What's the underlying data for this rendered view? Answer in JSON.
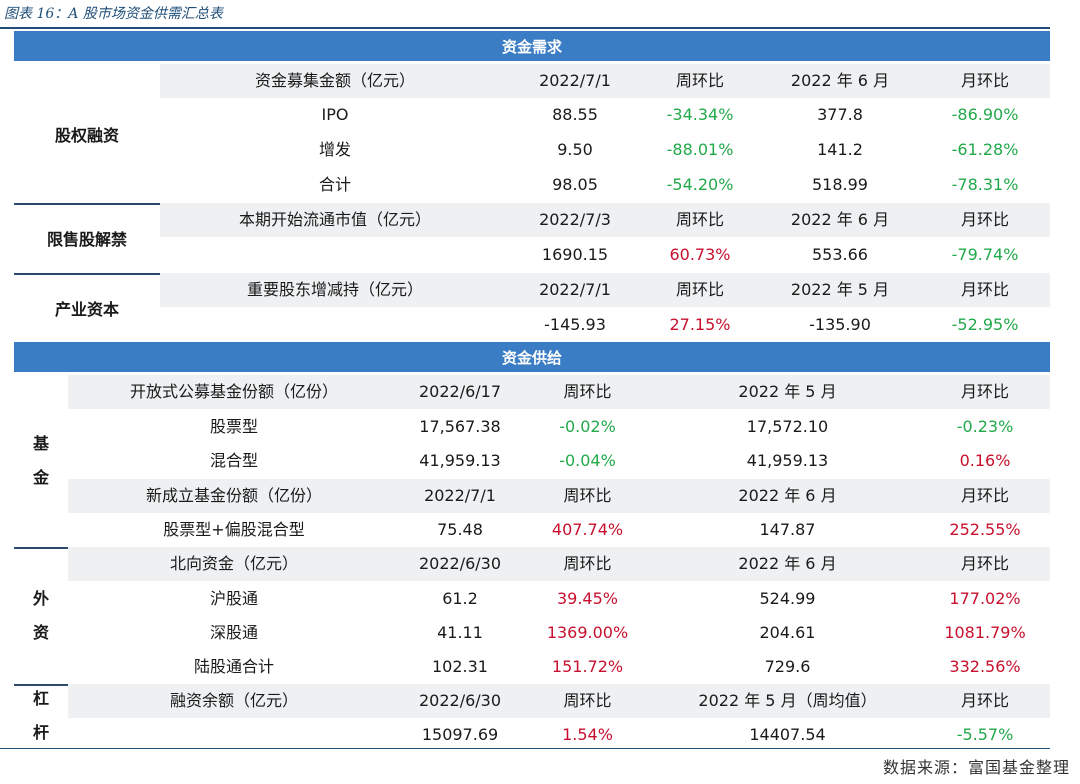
{
  "caption": "图表 16：A 股市场资金供需汇总表",
  "source": "数据来源：富国基金整理",
  "colors": {
    "up": "#c8102e",
    "down": "#22a94a",
    "band": "#3a7dc4",
    "navy": "#1f4e79"
  },
  "demand": {
    "title": "资金需求",
    "equity": {
      "group": "股权融资",
      "header": [
        "资金募集金额（亿元）",
        "2022/7/1",
        "周环比",
        "2022 年 6 月",
        "月环比"
      ],
      "rows": [
        [
          "IPO",
          "88.55",
          "-34.34%",
          "377.8",
          "-86.90%"
        ],
        [
          "增发",
          "9.50",
          "-88.01%",
          "141.2",
          "-61.28%"
        ],
        [
          "合计",
          "98.05",
          "-54.20%",
          "518.99",
          "-78.31%"
        ]
      ]
    },
    "lockup": {
      "group": "限售股解禁",
      "header": [
        "本期开始流通市值（亿元）",
        "2022/7/3",
        "周环比",
        "2022 年 6 月",
        "月环比"
      ],
      "rows": [
        [
          "",
          "1690.15",
          "60.73%",
          "553.66",
          "-79.74%"
        ]
      ]
    },
    "industry": {
      "group": "产业资本",
      "header": [
        "重要股东增减持（亿元）",
        "2022/7/1",
        "周环比",
        "2022 年 5 月",
        "月环比"
      ],
      "rows": [
        [
          "",
          "-145.93",
          "27.15%",
          "-135.90",
          "-52.95%"
        ]
      ]
    }
  },
  "supply": {
    "title": "资金供给",
    "fund": {
      "group": [
        "基",
        "金"
      ],
      "open_header": [
        "开放式公募基金份额（亿份）",
        "2022/6/17",
        "周环比",
        "2022 年 5 月",
        "月环比"
      ],
      "open_rows": [
        [
          "股票型",
          "17,567.38",
          "-0.02%",
          "17,572.10",
          "-0.23%"
        ],
        [
          "混合型",
          "41,959.13",
          "-0.04%",
          "41,959.13",
          "0.16%"
        ]
      ],
      "new_header": [
        "新成立基金份额（亿份）",
        "2022/7/1",
        "周环比",
        "2022 年 6 月",
        "月环比"
      ],
      "new_rows": [
        [
          "股票型+偏股混合型",
          "75.48",
          "407.74%",
          "147.87",
          "252.55%"
        ]
      ]
    },
    "foreign": {
      "group": [
        "外",
        "资"
      ],
      "header": [
        "北向资金（亿元）",
        "2022/6/30",
        "周环比",
        "2022 年 6 月",
        "月环比"
      ],
      "rows": [
        [
          "沪股通",
          "61.2",
          "39.45%",
          "524.99",
          "177.02%"
        ],
        [
          "深股通",
          "41.11",
          "1369.00%",
          "204.61",
          "1081.79%"
        ],
        [
          "陆股通合计",
          "102.31",
          "151.72%",
          "729.6",
          "332.56%"
        ]
      ]
    },
    "leverage": {
      "group": [
        "杠",
        "杆"
      ],
      "header": [
        "融资余额（亿元）",
        "2022/6/30",
        "周环比",
        "2022 年 5 月（周均值）",
        "月环比"
      ],
      "rows": [
        [
          "",
          "15097.69",
          "1.54%",
          "14407.54",
          "-5.57%"
        ]
      ]
    }
  }
}
